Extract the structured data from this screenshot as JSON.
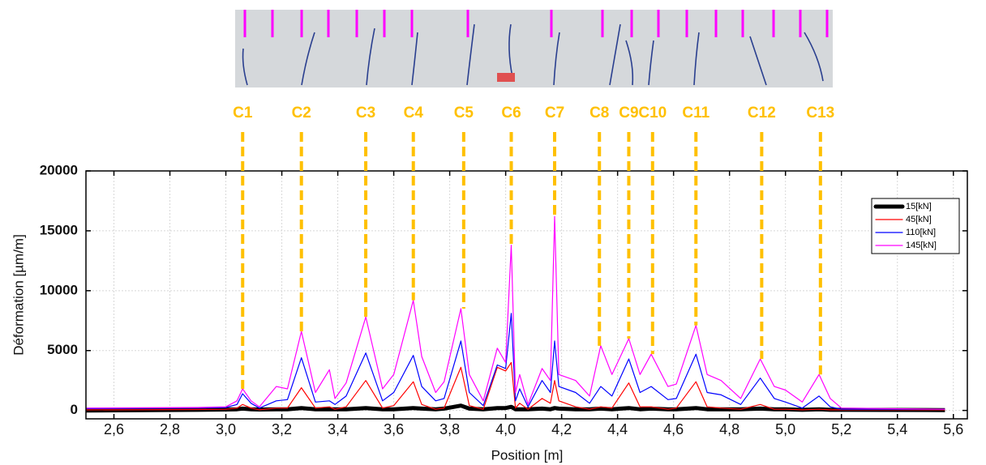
{
  "chart_data": {
    "type": "line",
    "x_label": "Position [m]",
    "y_label": "Déformation [µm/m]",
    "xlim": [
      2.5,
      5.65
    ],
    "ylim": [
      -700,
      20000
    ],
    "xticks": [
      {
        "value": 2.6,
        "label": "2,6"
      },
      {
        "value": 2.8,
        "label": "2,8"
      },
      {
        "value": 3.0,
        "label": "3,0"
      },
      {
        "value": 3.2,
        "label": "3,2"
      },
      {
        "value": 3.4,
        "label": "3,4"
      },
      {
        "value": 3.6,
        "label": "3,6"
      },
      {
        "value": 3.8,
        "label": "3,8"
      },
      {
        "value": 4.0,
        "label": "4,0"
      },
      {
        "value": 4.2,
        "label": "4,2"
      },
      {
        "value": 4.4,
        "label": "4,4"
      },
      {
        "value": 4.6,
        "label": "4,6"
      },
      {
        "value": 4.8,
        "label": "4,8"
      },
      {
        "value": 5.0,
        "label": "5,0"
      },
      {
        "value": 5.2,
        "label": "5,2"
      },
      {
        "value": 5.4,
        "label": "5,4"
      },
      {
        "value": 5.6,
        "label": "5,6"
      }
    ],
    "yticks": [
      0,
      5000,
      10000,
      15000,
      20000
    ],
    "grid": true,
    "legend": "upper right",
    "marker_color": "#ffc000",
    "x": [
      2.5,
      2.9,
      3.0,
      3.04,
      3.06,
      3.09,
      3.12,
      3.18,
      3.22,
      3.27,
      3.32,
      3.37,
      3.39,
      3.43,
      3.5,
      3.56,
      3.6,
      3.67,
      3.7,
      3.75,
      3.78,
      3.84,
      3.87,
      3.92,
      3.97,
      4.0,
      4.02,
      4.035,
      4.05,
      4.08,
      4.13,
      4.16,
      4.175,
      4.19,
      4.25,
      4.3,
      4.34,
      4.38,
      4.44,
      4.48,
      4.52,
      4.58,
      4.61,
      4.68,
      4.72,
      4.77,
      4.84,
      4.91,
      4.96,
      5.0,
      5.06,
      5.12,
      5.16,
      5.2,
      5.57
    ],
    "series": [
      {
        "name": "15[kN]",
        "color": "#000000",
        "width": 5,
        "values": [
          0,
          50,
          80,
          100,
          150,
          100,
          80,
          100,
          100,
          200,
          100,
          100,
          100,
          100,
          200,
          100,
          100,
          200,
          150,
          100,
          150,
          400,
          150,
          100,
          200,
          200,
          300,
          100,
          100,
          100,
          150,
          100,
          200,
          150,
          100,
          100,
          150,
          100,
          200,
          100,
          150,
          100,
          100,
          200,
          100,
          100,
          100,
          150,
          100,
          100,
          50,
          100,
          50,
          50,
          30
        ]
      },
      {
        "name": "45[kN]",
        "color": "#ff0000",
        "width": 1.2,
        "values": [
          50,
          80,
          100,
          200,
          500,
          200,
          50,
          200,
          200,
          1900,
          200,
          300,
          100,
          300,
          2500,
          200,
          400,
          2400,
          500,
          100,
          200,
          3600,
          400,
          100,
          3600,
          3300,
          4000,
          200,
          600,
          100,
          1000,
          600,
          2500,
          800,
          300,
          100,
          300,
          200,
          2300,
          300,
          300,
          100,
          200,
          2400,
          300,
          200,
          100,
          500,
          100,
          100,
          50,
          100,
          50,
          50,
          50
        ]
      },
      {
        "name": "110[kN]",
        "color": "#0000ff",
        "width": 1.2,
        "values": [
          150,
          200,
          250,
          500,
          1400,
          600,
          200,
          800,
          900,
          4400,
          700,
          800,
          500,
          1200,
          4800,
          800,
          1500,
          4600,
          2000,
          800,
          1000,
          5800,
          1500,
          400,
          3800,
          3500,
          8100,
          800,
          1800,
          300,
          2500,
          1500,
          5800,
          2000,
          1500,
          600,
          2000,
          1200,
          4300,
          1500,
          2000,
          900,
          1000,
          4700,
          1500,
          1300,
          500,
          2700,
          1000,
          700,
          200,
          1200,
          300,
          100,
          100
        ]
      },
      {
        "name": "145[kN]",
        "color": "#ff00ff",
        "width": 1.2,
        "values": [
          200,
          250,
          300,
          800,
          1800,
          800,
          300,
          2000,
          1800,
          6600,
          1500,
          3400,
          1000,
          2300,
          7800,
          1800,
          3000,
          9200,
          4500,
          1500,
          2400,
          8500,
          3000,
          800,
          5200,
          4000,
          13800,
          1500,
          3000,
          500,
          3500,
          2500,
          16200,
          3000,
          2500,
          1200,
          5400,
          3000,
          6000,
          3000,
          4700,
          2000,
          2200,
          7100,
          3000,
          2500,
          1000,
          4300,
          2000,
          1700,
          700,
          3000,
          1000,
          200,
          100
        ]
      }
    ],
    "annotations": [
      {
        "label": "C1",
        "x": 3.06
      },
      {
        "label": "C2",
        "x": 3.27
      },
      {
        "label": "C3",
        "x": 3.5
      },
      {
        "label": "C4",
        "x": 3.67
      },
      {
        "label": "C5",
        "x": 3.85
      },
      {
        "label": "C6",
        "x": 4.02
      },
      {
        "label": "C7",
        "x": 4.175
      },
      {
        "label": "C8",
        "x": 4.335
      },
      {
        "label": "C9",
        "x": 4.44
      },
      {
        "label": "C10",
        "x": 4.525
      },
      {
        "label": "C11",
        "x": 4.68
      },
      {
        "label": "C12",
        "x": 4.915
      },
      {
        "label": "C13",
        "x": 5.125
      }
    ]
  }
}
